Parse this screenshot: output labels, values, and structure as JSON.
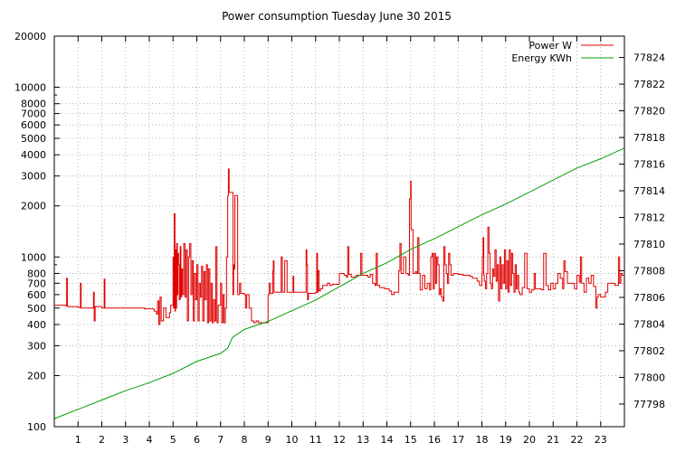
{
  "chart_data": {
    "type": "line",
    "title": "Power consumption Tuesday June 30 2015",
    "xlabel": "",
    "ylabel": "",
    "y2label": "",
    "grid": true,
    "legend_position": "top-right",
    "x_range": [
      0,
      24
    ],
    "x_ticks": [
      1,
      2,
      3,
      4,
      5,
      6,
      7,
      8,
      9,
      10,
      11,
      12,
      13,
      14,
      15,
      16,
      17,
      18,
      19,
      20,
      21,
      22,
      23
    ],
    "y_scale": "log",
    "y_range": [
      100,
      20000
    ],
    "y_ticks": [
      100,
      200,
      300,
      400,
      500,
      600,
      700,
      800,
      1000,
      2000,
      3000,
      4000,
      5000,
      6000,
      7000,
      8000,
      10000,
      20000
    ],
    "y2_range": [
      77796.3,
      77825.6
    ],
    "y2_ticks": [
      77798,
      77800,
      77802,
      77804,
      77806,
      77808,
      77810,
      77812,
      77814,
      77816,
      77818,
      77820,
      77822,
      77824
    ],
    "series": [
      {
        "name": "Power W",
        "axis": "y",
        "color": "#e00000",
        "step": true,
        "points": [
          [
            0.0,
            520
          ],
          [
            0.5,
            515
          ],
          [
            0.52,
            750
          ],
          [
            0.55,
            510
          ],
          [
            1.0,
            505
          ],
          [
            1.1,
            700
          ],
          [
            1.13,
            500
          ],
          [
            1.6,
            500
          ],
          [
            1.65,
            620
          ],
          [
            1.68,
            420
          ],
          [
            1.72,
            510
          ],
          [
            2.0,
            500
          ],
          [
            2.1,
            740
          ],
          [
            2.13,
            500
          ],
          [
            3.0,
            500
          ],
          [
            3.8,
            495
          ],
          [
            4.2,
            480
          ],
          [
            4.3,
            460
          ],
          [
            4.35,
            550
          ],
          [
            4.4,
            400
          ],
          [
            4.45,
            580
          ],
          [
            4.5,
            420
          ],
          [
            4.6,
            500
          ],
          [
            4.7,
            440
          ],
          [
            4.85,
            470
          ],
          [
            4.9,
            520
          ],
          [
            5.0,
            1000
          ],
          [
            5.02,
            500
          ],
          [
            5.05,
            1800
          ],
          [
            5.08,
            480
          ],
          [
            5.1,
            1100
          ],
          [
            5.12,
            500
          ],
          [
            5.15,
            1200
          ],
          [
            5.18,
            600
          ],
          [
            5.2,
            1050
          ],
          [
            5.23,
            900
          ],
          [
            5.26,
            560
          ],
          [
            5.3,
            1150
          ],
          [
            5.33,
            580
          ],
          [
            5.36,
            850
          ],
          [
            5.4,
            600
          ],
          [
            5.45,
            1200
          ],
          [
            5.5,
            580
          ],
          [
            5.55,
            1100
          ],
          [
            5.6,
            420
          ],
          [
            5.65,
            1000
          ],
          [
            5.7,
            1200
          ],
          [
            5.75,
            600
          ],
          [
            5.8,
            950
          ],
          [
            5.85,
            420
          ],
          [
            5.9,
            800
          ],
          [
            5.95,
            560
          ],
          [
            6.0,
            900
          ],
          [
            6.05,
            420
          ],
          [
            6.1,
            700
          ],
          [
            6.15,
            580
          ],
          [
            6.2,
            880
          ],
          [
            6.25,
            420
          ],
          [
            6.3,
            820
          ],
          [
            6.35,
            560
          ],
          [
            6.4,
            900
          ],
          [
            6.45,
            410
          ],
          [
            6.5,
            850
          ],
          [
            6.55,
            420
          ],
          [
            6.6,
            700
          ],
          [
            6.65,
            410
          ],
          [
            6.7,
            560
          ],
          [
            6.75,
            420
          ],
          [
            6.8,
            1150
          ],
          [
            6.85,
            410
          ],
          [
            6.9,
            520
          ],
          [
            7.0,
            700
          ],
          [
            7.05,
            410
          ],
          [
            7.1,
            600
          ],
          [
            7.15,
            410
          ],
          [
            7.2,
            500
          ],
          [
            7.25,
            1000
          ],
          [
            7.3,
            2300
          ],
          [
            7.33,
            3300
          ],
          [
            7.36,
            2400
          ],
          [
            7.5,
            2400
          ],
          [
            7.52,
            600
          ],
          [
            7.55,
            900
          ],
          [
            7.58,
            850
          ],
          [
            7.6,
            2300
          ],
          [
            7.7,
            2300
          ],
          [
            7.72,
            600
          ],
          [
            7.8,
            700
          ],
          [
            7.85,
            610
          ],
          [
            8.0,
            600
          ],
          [
            8.05,
            500
          ],
          [
            8.1,
            600
          ],
          [
            8.2,
            500
          ],
          [
            8.3,
            420
          ],
          [
            8.4,
            410
          ],
          [
            8.5,
            420
          ],
          [
            8.6,
            410
          ],
          [
            8.9,
            410
          ],
          [
            9.0,
            600
          ],
          [
            9.05,
            700
          ],
          [
            9.1,
            610
          ],
          [
            9.2,
            830
          ],
          [
            9.22,
            950
          ],
          [
            9.25,
            620
          ],
          [
            9.4,
            620
          ],
          [
            9.5,
            620
          ],
          [
            9.55,
            1000
          ],
          [
            9.6,
            620
          ],
          [
            9.7,
            950
          ],
          [
            9.8,
            620
          ],
          [
            10.0,
            620
          ],
          [
            10.05,
            770
          ],
          [
            10.08,
            620
          ],
          [
            10.2,
            620
          ],
          [
            10.3,
            620
          ],
          [
            10.5,
            620
          ],
          [
            10.6,
            1100
          ],
          [
            10.63,
            900
          ],
          [
            10.66,
            560
          ],
          [
            10.7,
            610
          ],
          [
            11.0,
            620
          ],
          [
            11.05,
            1050
          ],
          [
            11.08,
            620
          ],
          [
            11.1,
            830
          ],
          [
            11.15,
            630
          ],
          [
            11.2,
            650
          ],
          [
            11.3,
            680
          ],
          [
            11.5,
            700
          ],
          [
            11.6,
            680
          ],
          [
            11.7,
            690
          ],
          [
            12.0,
            800
          ],
          [
            12.2,
            780
          ],
          [
            12.3,
            760
          ],
          [
            12.35,
            1150
          ],
          [
            12.4,
            790
          ],
          [
            12.5,
            760
          ],
          [
            12.7,
            780
          ],
          [
            12.9,
            1050
          ],
          [
            12.95,
            780
          ],
          [
            13.0,
            780
          ],
          [
            13.2,
            760
          ],
          [
            13.3,
            790
          ],
          [
            13.4,
            700
          ],
          [
            13.5,
            680
          ],
          [
            13.55,
            1050
          ],
          [
            13.6,
            680
          ],
          [
            13.7,
            660
          ],
          [
            13.9,
            650
          ],
          [
            14.0,
            650
          ],
          [
            14.1,
            630
          ],
          [
            14.2,
            600
          ],
          [
            14.3,
            620
          ],
          [
            14.5,
            830
          ],
          [
            14.55,
            1200
          ],
          [
            14.6,
            800
          ],
          [
            14.7,
            1000
          ],
          [
            14.8,
            800
          ],
          [
            14.9,
            780
          ],
          [
            14.95,
            2200
          ],
          [
            15.0,
            2800
          ],
          [
            15.02,
            1450
          ],
          [
            15.1,
            800
          ],
          [
            15.2,
            820
          ],
          [
            15.25,
            800
          ],
          [
            15.3,
            1300
          ],
          [
            15.35,
            800
          ],
          [
            15.4,
            640
          ],
          [
            15.5,
            780
          ],
          [
            15.6,
            650
          ],
          [
            15.7,
            700
          ],
          [
            15.8,
            640
          ],
          [
            15.85,
            1000
          ],
          [
            15.9,
            1050
          ],
          [
            15.95,
            650
          ],
          [
            16.0,
            1050
          ],
          [
            16.05,
            700
          ],
          [
            16.1,
            1000
          ],
          [
            16.15,
            900
          ],
          [
            16.2,
            600
          ],
          [
            16.25,
            650
          ],
          [
            16.3,
            580
          ],
          [
            16.35,
            550
          ],
          [
            16.4,
            1150
          ],
          [
            16.45,
            900
          ],
          [
            16.5,
            800
          ],
          [
            16.55,
            700
          ],
          [
            16.6,
            1050
          ],
          [
            16.65,
            900
          ],
          [
            16.7,
            780
          ],
          [
            16.8,
            800
          ],
          [
            17.0,
            790
          ],
          [
            17.2,
            780
          ],
          [
            17.5,
            770
          ],
          [
            17.6,
            750
          ],
          [
            17.8,
            720
          ],
          [
            17.9,
            680
          ],
          [
            18.0,
            800
          ],
          [
            18.02,
            1000
          ],
          [
            18.05,
            1300
          ],
          [
            18.08,
            780
          ],
          [
            18.1,
            720
          ],
          [
            18.15,
            650
          ],
          [
            18.2,
            800
          ],
          [
            18.25,
            1500
          ],
          [
            18.3,
            1050
          ],
          [
            18.35,
            700
          ],
          [
            18.4,
            650
          ],
          [
            18.45,
            850
          ],
          [
            18.5,
            770
          ],
          [
            18.55,
            1100
          ],
          [
            18.6,
            720
          ],
          [
            18.65,
            900
          ],
          [
            18.7,
            550
          ],
          [
            18.75,
            1000
          ],
          [
            18.8,
            650
          ],
          [
            18.85,
            900
          ],
          [
            18.9,
            700
          ],
          [
            18.95,
            1100
          ],
          [
            19.0,
            650
          ],
          [
            19.05,
            950
          ],
          [
            19.1,
            620
          ],
          [
            19.15,
            1100
          ],
          [
            19.2,
            680
          ],
          [
            19.25,
            1050
          ],
          [
            19.3,
            800
          ],
          [
            19.35,
            620
          ],
          [
            19.4,
            900
          ],
          [
            19.45,
            650
          ],
          [
            19.5,
            780
          ],
          [
            19.55,
            620
          ],
          [
            19.6,
            600
          ],
          [
            19.7,
            660
          ],
          [
            19.8,
            1050
          ],
          [
            19.9,
            650
          ],
          [
            20.0,
            620
          ],
          [
            20.1,
            640
          ],
          [
            20.2,
            800
          ],
          [
            20.25,
            650
          ],
          [
            20.4,
            650
          ],
          [
            20.5,
            640
          ],
          [
            20.6,
            1050
          ],
          [
            20.7,
            680
          ],
          [
            20.8,
            640
          ],
          [
            20.9,
            700
          ],
          [
            21.0,
            650
          ],
          [
            21.1,
            700
          ],
          [
            21.2,
            800
          ],
          [
            21.3,
            750
          ],
          [
            21.4,
            650
          ],
          [
            21.45,
            950
          ],
          [
            21.5,
            820
          ],
          [
            21.6,
            700
          ],
          [
            21.8,
            700
          ],
          [
            21.9,
            650
          ],
          [
            22.0,
            780
          ],
          [
            22.1,
            710
          ],
          [
            22.15,
            1000
          ],
          [
            22.2,
            700
          ],
          [
            22.3,
            620
          ],
          [
            22.4,
            750
          ],
          [
            22.5,
            700
          ],
          [
            22.6,
            780
          ],
          [
            22.7,
            670
          ],
          [
            22.8,
            500
          ],
          [
            22.85,
            580
          ],
          [
            22.9,
            600
          ],
          [
            23.0,
            580
          ],
          [
            23.2,
            620
          ],
          [
            23.3,
            700
          ],
          [
            23.6,
            680
          ],
          [
            23.75,
            1000
          ],
          [
            23.8,
            700
          ],
          [
            23.85,
            800
          ],
          [
            23.9,
            780
          ],
          [
            24.0,
            780
          ]
        ]
      },
      {
        "name": "Energy KWh",
        "axis": "y2",
        "color": "#00a000",
        "step": false,
        "points": [
          [
            0.0,
            77796.9
          ],
          [
            1.0,
            77797.6
          ],
          [
            2.0,
            77798.3
          ],
          [
            3.0,
            77799.0
          ],
          [
            4.0,
            77799.6
          ],
          [
            5.0,
            77800.3
          ],
          [
            6.0,
            77801.2
          ],
          [
            7.0,
            77801.8
          ],
          [
            7.3,
            77802.2
          ],
          [
            7.5,
            77803.0
          ],
          [
            8.0,
            77803.6
          ],
          [
            9.0,
            77804.2
          ],
          [
            10.0,
            77805.0
          ],
          [
            11.0,
            77805.8
          ],
          [
            12.0,
            77806.8
          ],
          [
            13.0,
            77807.8
          ],
          [
            14.0,
            77808.6
          ],
          [
            15.0,
            77809.6
          ],
          [
            16.0,
            77810.4
          ],
          [
            17.0,
            77811.3
          ],
          [
            18.0,
            77812.2
          ],
          [
            19.0,
            77813.0
          ],
          [
            20.0,
            77813.9
          ],
          [
            21.0,
            77814.8
          ],
          [
            22.0,
            77815.7
          ],
          [
            23.0,
            77816.4
          ],
          [
            24.0,
            77817.2
          ]
        ]
      }
    ]
  }
}
